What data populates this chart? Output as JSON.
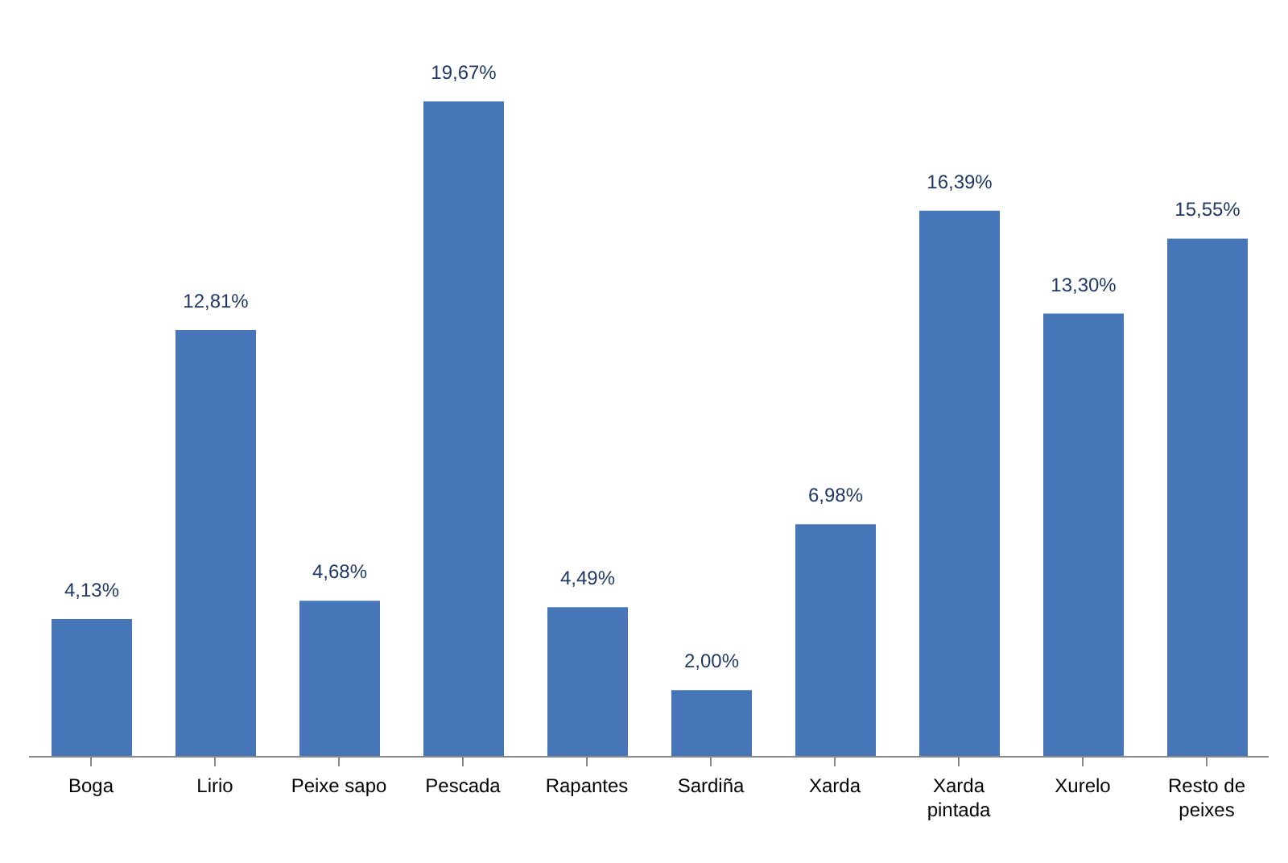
{
  "chart_data": {
    "type": "bar",
    "categories": [
      "Boga",
      "Lirio",
      "Peixe sapo",
      "Pescada",
      "Rapantes",
      "Sardiña",
      "Xarda",
      "Xarda pintada",
      "Xurelo",
      "Resto de peixes"
    ],
    "values": [
      4.13,
      12.81,
      4.68,
      19.67,
      4.49,
      2.0,
      6.98,
      16.39,
      13.3,
      15.55
    ],
    "value_labels": [
      "4,13%",
      "12,81%",
      "4,68%",
      "19,67%",
      "4,49%",
      "2,00%",
      "6,98%",
      "16,39%",
      "13,30%",
      "15,55%"
    ],
    "color": "#4676b8",
    "tick_labels": "x"
  }
}
